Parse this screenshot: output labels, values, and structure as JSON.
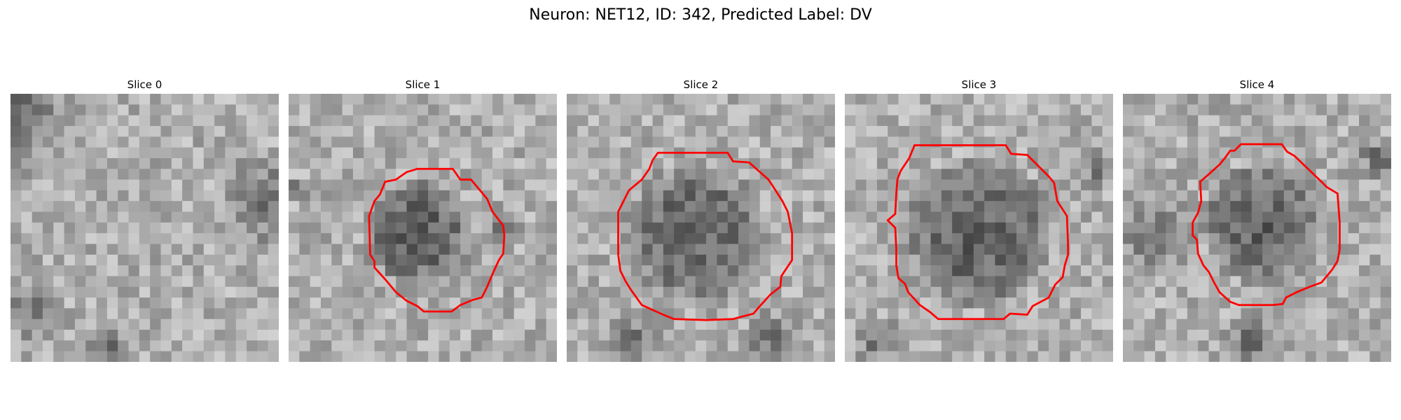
{
  "figure": {
    "suptitle": "Neuron: NET12, ID: 342, Predicted Label: DV"
  },
  "panels": [
    {
      "title": "Slice 0",
      "has_contour": false
    },
    {
      "title": "Slice 1",
      "has_contour": true
    },
    {
      "title": "Slice 2",
      "has_contour": true
    },
    {
      "title": "Slice 3",
      "has_contour": true
    },
    {
      "title": "Slice 4",
      "has_contour": true
    }
  ],
  "colors": {
    "contour": "#ff0000",
    "background": "#ffffff"
  }
}
